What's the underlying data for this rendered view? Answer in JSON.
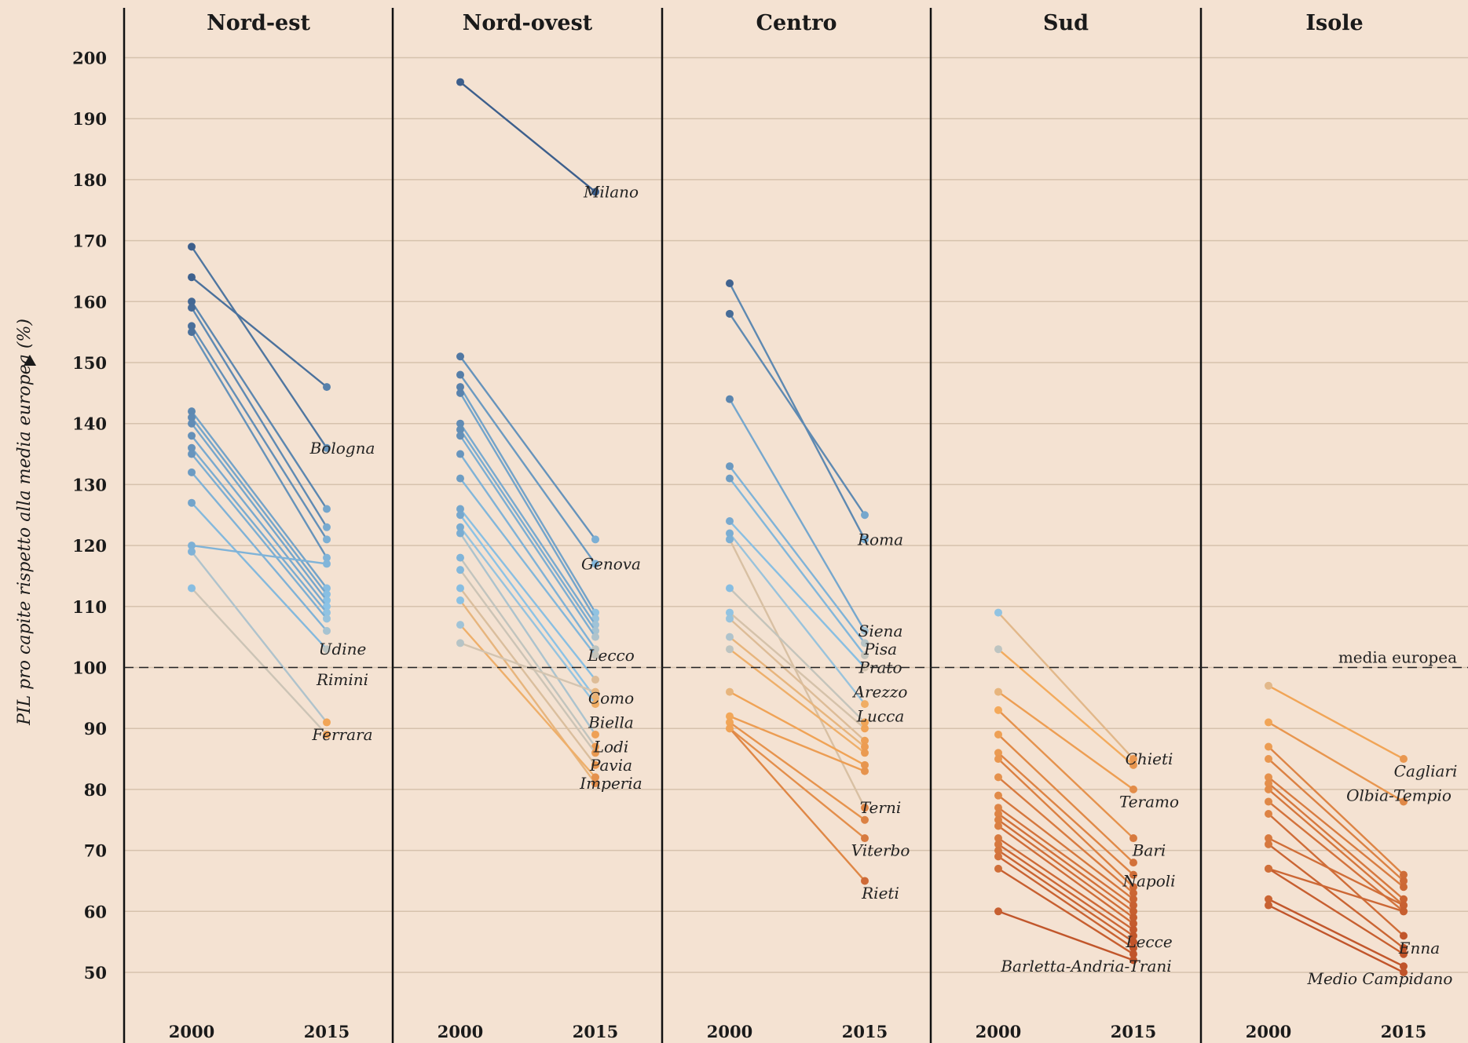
{
  "chart_data": {
    "type": "line",
    "ylabel": "PIL pro capite rispetto alla media europea (%)",
    "ylim": [
      40,
      205
    ],
    "yticks": [
      50,
      60,
      70,
      80,
      90,
      100,
      110,
      120,
      130,
      140,
      150,
      160,
      170,
      180,
      190,
      200
    ],
    "x": [
      "2000",
      "2015"
    ],
    "reference_line": {
      "value": 100,
      "label": "media europea"
    },
    "colors": {
      "high": "#3d5f8c",
      "mid": "#d3c4b0",
      "low": "#c0542a",
      "axis": "#111111",
      "grid": "#d6c2ad"
    },
    "panels": [
      {
        "title": "Nord-est",
        "series": [
          {
            "v2000": 169,
            "v2015": 136
          },
          {
            "v2000": 164,
            "v2015": 146
          },
          {
            "v2000": 160,
            "v2015": 126
          },
          {
            "v2000": 159,
            "v2015": 123
          },
          {
            "v2000": 156,
            "v2015": 121
          },
          {
            "v2000": 155,
            "v2015": 118
          },
          {
            "v2000": 142,
            "v2015": 113
          },
          {
            "v2000": 141,
            "v2015": 112
          },
          {
            "v2000": 140,
            "v2015": 111
          },
          {
            "v2000": 138,
            "v2015": 110
          },
          {
            "v2000": 136,
            "v2015": 109
          },
          {
            "v2000": 135,
            "v2015": 108
          },
          {
            "v2000": 132,
            "v2015": 106
          },
          {
            "v2000": 127,
            "v2015": 103
          },
          {
            "v2000": 120,
            "v2015": 117
          },
          {
            "v2000": 119,
            "v2015": 91
          },
          {
            "v2000": 113,
            "v2015": 89
          }
        ],
        "labels": [
          {
            "text": "Bologna",
            "value": 136
          },
          {
            "text": "Udine",
            "value": 103
          },
          {
            "text": "Rimini",
            "value": 98
          },
          {
            "text": "Ferrara",
            "value": 89
          }
        ]
      },
      {
        "title": "Nord-ovest",
        "series": [
          {
            "v2000": 196,
            "v2015": 178
          },
          {
            "v2000": 151,
            "v2015": 121
          },
          {
            "v2000": 148,
            "v2015": 117
          },
          {
            "v2000": 146,
            "v2015": 109
          },
          {
            "v2000": 145,
            "v2015": 108
          },
          {
            "v2000": 140,
            "v2015": 107
          },
          {
            "v2000": 139,
            "v2015": 106
          },
          {
            "v2000": 138,
            "v2015": 105
          },
          {
            "v2000": 135,
            "v2015": 103
          },
          {
            "v2000": 131,
            "v2015": 102
          },
          {
            "v2000": 126,
            "v2015": 98
          },
          {
            "v2000": 125,
            "v2015": 95
          },
          {
            "v2000": 123,
            "v2015": 94
          },
          {
            "v2000": 122,
            "v2015": 89
          },
          {
            "v2000": 118,
            "v2015": 87
          },
          {
            "v2000": 116,
            "v2015": 86
          },
          {
            "v2000": 113,
            "v2015": 84
          },
          {
            "v2000": 111,
            "v2015": 81
          },
          {
            "v2000": 107,
            "v2015": 82
          },
          {
            "v2000": 104,
            "v2015": 96
          }
        ],
        "labels": [
          {
            "text": "Milano",
            "value": 178
          },
          {
            "text": "Genova",
            "value": 117
          },
          {
            "text": "Lecco",
            "value": 102
          },
          {
            "text": "Como",
            "value": 95
          },
          {
            "text": "Biella",
            "value": 91
          },
          {
            "text": "Lodi",
            "value": 87
          },
          {
            "text": "Pavia",
            "value": 84
          },
          {
            "text": "Imperia",
            "value": 81
          }
        ]
      },
      {
        "title": "Centro",
        "series": [
          {
            "v2000": 163,
            "v2015": 121
          },
          {
            "v2000": 158,
            "v2015": 125
          },
          {
            "v2000": 144,
            "v2015": 106
          },
          {
            "v2000": 133,
            "v2015": 104
          },
          {
            "v2000": 131,
            "v2015": 102
          },
          {
            "v2000": 124,
            "v2015": 100
          },
          {
            "v2000": 122,
            "v2015": 94
          },
          {
            "v2000": 121,
            "v2015": 77
          },
          {
            "v2000": 113,
            "v2015": 91
          },
          {
            "v2000": 109,
            "v2015": 90
          },
          {
            "v2000": 108,
            "v2015": 88
          },
          {
            "v2000": 105,
            "v2015": 87
          },
          {
            "v2000": 103,
            "v2015": 86
          },
          {
            "v2000": 96,
            "v2015": 84
          },
          {
            "v2000": 92,
            "v2015": 83
          },
          {
            "v2000": 91,
            "v2015": 75
          },
          {
            "v2000": 90,
            "v2015": 72
          },
          {
            "v2000": 90,
            "v2015": 65
          }
        ],
        "labels": [
          {
            "text": "Roma",
            "value": 121
          },
          {
            "text": "Siena",
            "value": 106
          },
          {
            "text": "Pisa",
            "value": 103
          },
          {
            "text": "Prato",
            "value": 100
          },
          {
            "text": "Arezzo",
            "value": 96
          },
          {
            "text": "Lucca",
            "value": 92
          },
          {
            "text": "Terni",
            "value": 77
          },
          {
            "text": "Viterbo",
            "value": 70
          },
          {
            "text": "Rieti",
            "value": 63
          }
        ]
      },
      {
        "title": "Sud",
        "series": [
          {
            "v2000": 109,
            "v2015": 85
          },
          {
            "v2000": 103,
            "v2015": 84
          },
          {
            "v2000": 96,
            "v2015": 80
          },
          {
            "v2000": 93,
            "v2015": 72
          },
          {
            "v2000": 89,
            "v2015": 68
          },
          {
            "v2000": 86,
            "v2015": 66
          },
          {
            "v2000": 85,
            "v2015": 64
          },
          {
            "v2000": 82,
            "v2015": 63
          },
          {
            "v2000": 79,
            "v2015": 62
          },
          {
            "v2000": 77,
            "v2015": 61
          },
          {
            "v2000": 76,
            "v2015": 60
          },
          {
            "v2000": 75,
            "v2015": 59
          },
          {
            "v2000": 74,
            "v2015": 58
          },
          {
            "v2000": 72,
            "v2015": 57
          },
          {
            "v2000": 71,
            "v2015": 56
          },
          {
            "v2000": 70,
            "v2015": 55
          },
          {
            "v2000": 69,
            "v2015": 54
          },
          {
            "v2000": 67,
            "v2015": 53
          },
          {
            "v2000": 60,
            "v2015": 52
          }
        ],
        "labels": [
          {
            "text": "Chieti",
            "value": 85
          },
          {
            "text": "Teramo",
            "value": 78
          },
          {
            "text": "Bari",
            "value": 70
          },
          {
            "text": "Napoli",
            "value": 65
          },
          {
            "text": "Lecce",
            "value": 55
          },
          {
            "text": "Barletta-Andria-Trani",
            "value": 51
          }
        ]
      },
      {
        "title": "Isole",
        "series": [
          {
            "v2000": 97,
            "v2015": 85
          },
          {
            "v2000": 91,
            "v2015": 78
          },
          {
            "v2000": 87,
            "v2015": 66
          },
          {
            "v2000": 85,
            "v2015": 65
          },
          {
            "v2000": 82,
            "v2015": 64
          },
          {
            "v2000": 81,
            "v2015": 62
          },
          {
            "v2000": 80,
            "v2015": 61
          },
          {
            "v2000": 78,
            "v2015": 60
          },
          {
            "v2000": 76,
            "v2015": 56
          },
          {
            "v2000": 72,
            "v2015": 61
          },
          {
            "v2000": 71,
            "v2015": 54
          },
          {
            "v2000": 67,
            "v2015": 60
          },
          {
            "v2000": 67,
            "v2015": 53
          },
          {
            "v2000": 62,
            "v2015": 51
          },
          {
            "v2000": 61,
            "v2015": 50
          }
        ],
        "labels": [
          {
            "text": "Cagliari",
            "value": 83
          },
          {
            "text": "Olbia-Tempio",
            "value": 79
          },
          {
            "text": "Enna",
            "value": 54
          },
          {
            "text": "Medio Campidano",
            "value": 49
          }
        ]
      }
    ]
  }
}
